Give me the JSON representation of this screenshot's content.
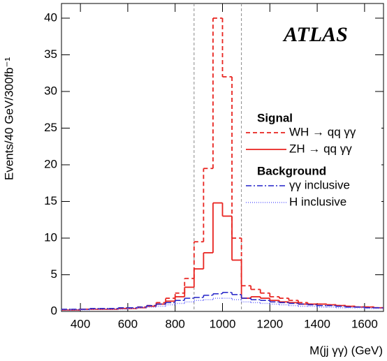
{
  "chart_data": {
    "type": "step-histogram",
    "xlabel": "M(jj γγ) (GeV)",
    "ylabel": "Events/40 GeV/300fb⁻¹",
    "annotation": "ATLAS",
    "bins": [
      320,
      360,
      400,
      440,
      480,
      520,
      560,
      600,
      640,
      680,
      720,
      760,
      800,
      840,
      880,
      920,
      960,
      1000,
      1040,
      1080,
      1120,
      1160,
      1200,
      1240,
      1280,
      1320,
      1360,
      1400,
      1440,
      1480,
      1520,
      1560,
      1600,
      1640,
      1680
    ],
    "series": [
      {
        "name": "WH → qq γγ",
        "group": "Signal",
        "color": "#e8231f",
        "dash": "6,4",
        "values": [
          0.2,
          0.2,
          0.3,
          0.3,
          0.3,
          0.3,
          0.4,
          0.4,
          0.6,
          0.8,
          1.2,
          1.8,
          2.5,
          4.5,
          9.5,
          19.5,
          40,
          32,
          10,
          3.5,
          3,
          2.5,
          2,
          1.8,
          1.5,
          1.2,
          1,
          1,
          0.9,
          0.8,
          0.7,
          0.6,
          0.6,
          0.5
        ]
      },
      {
        "name": "ZH → qq γγ",
        "group": "Signal",
        "color": "#e8231f",
        "dash": "none",
        "values": [
          0.2,
          0.2,
          0.3,
          0.3,
          0.3,
          0.3,
          0.4,
          0.4,
          0.5,
          0.7,
          1,
          1.4,
          2,
          3.3,
          5.8,
          8,
          14.8,
          13,
          7,
          1.8,
          2,
          1.8,
          1.5,
          1.3,
          1.2,
          1,
          1,
          1,
          0.9,
          0.8,
          0.7,
          0.6,
          0.6,
          0.5
        ]
      },
      {
        "name": "γγ inclusive",
        "group": "Background",
        "color": "#2020c8",
        "dash": "8,3,2,3",
        "values": [
          0.3,
          0.3,
          0.3,
          0.4,
          0.4,
          0.4,
          0.5,
          0.5,
          0.6,
          0.8,
          1,
          1.2,
          1.5,
          1.8,
          1.9,
          2.2,
          2.4,
          2.6,
          2.3,
          1.8,
          1.6,
          1.5,
          1.3,
          1.2,
          1.1,
          1,
          0.9,
          0.8,
          0.8,
          0.7,
          0.6,
          0.6,
          0.5,
          0.5
        ]
      },
      {
        "name": "H inclusive",
        "group": "Background",
        "color": "#6a6aff",
        "dash": "1,2",
        "values": [
          0.2,
          0.2,
          0.2,
          0.3,
          0.3,
          0.3,
          0.3,
          0.4,
          0.5,
          0.6,
          0.7,
          0.9,
          1.1,
          1.3,
          1.5,
          1.6,
          1.8,
          1.8,
          1.6,
          1.3,
          1.2,
          1.1,
          1,
          0.9,
          0.8,
          0.7,
          0.7,
          0.6,
          0.6,
          0.5,
          0.5,
          0.5,
          0.4,
          0.4
        ]
      }
    ],
    "vlines": [
      880,
      1080
    ],
    "xlim": [
      320,
      1680
    ],
    "xticks": [
      400,
      600,
      800,
      1000,
      1200,
      1400,
      1600
    ],
    "ylim": [
      0,
      42
    ],
    "yticks": [
      0,
      5,
      10,
      15,
      20,
      25,
      30,
      35,
      40
    ]
  }
}
